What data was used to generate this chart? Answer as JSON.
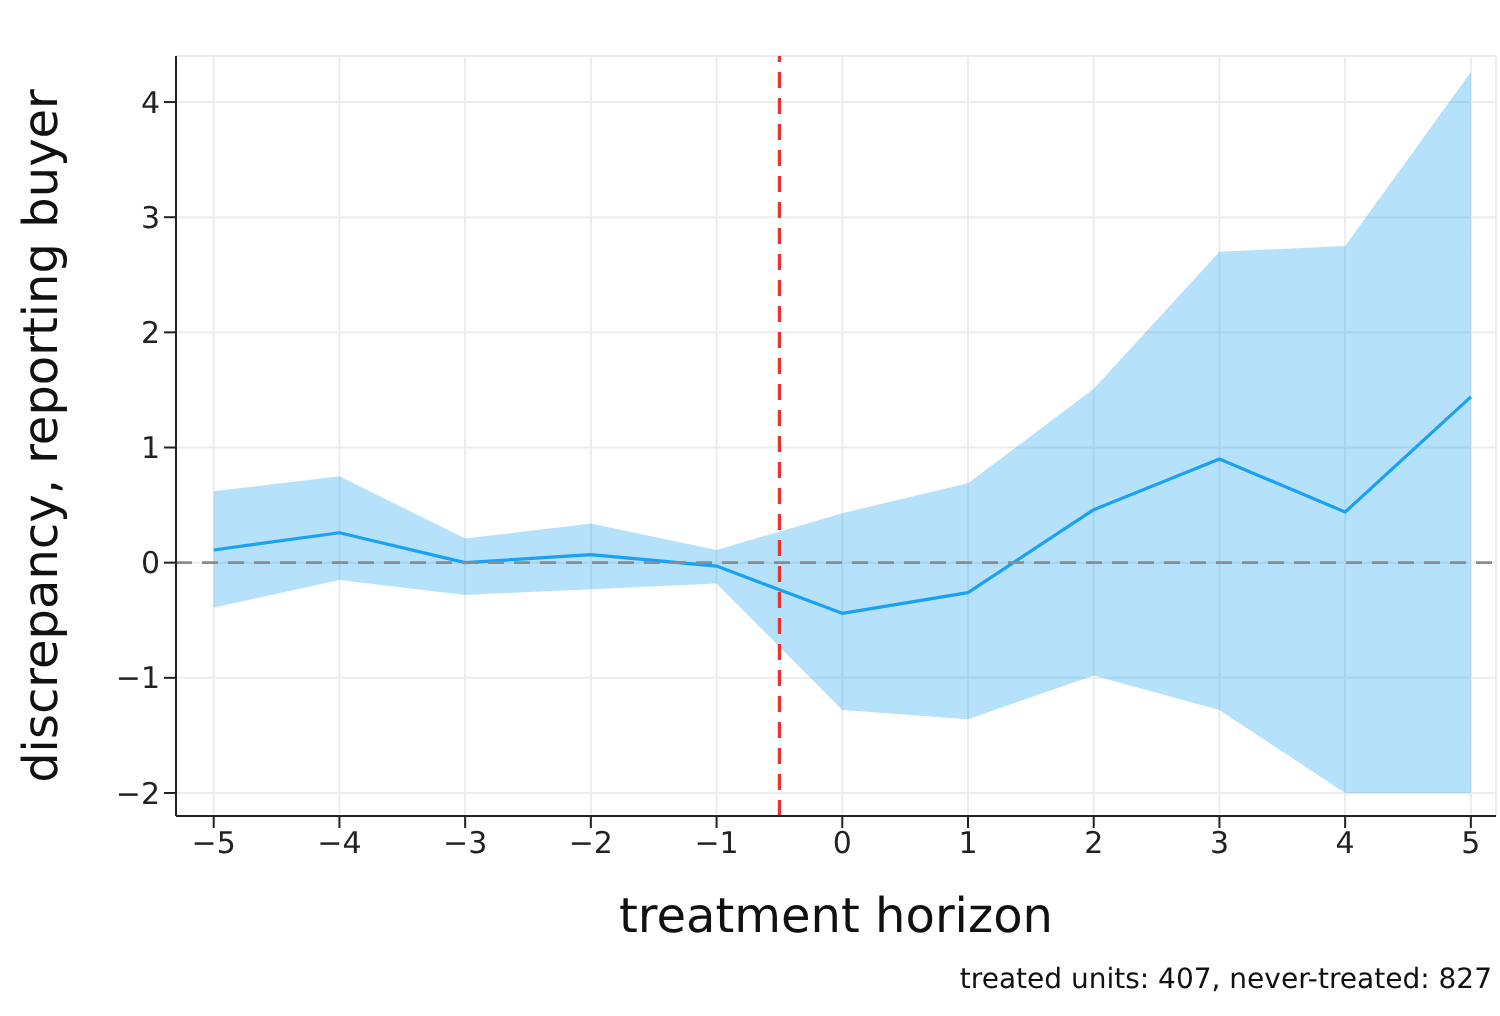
{
  "chart_data": {
    "type": "line",
    "xlabel": "treatment horizon",
    "ylabel": "discrepancy, reporting buyer",
    "x": [
      -5,
      -4,
      -3,
      -2,
      -1,
      0,
      1,
      2,
      3,
      4,
      5
    ],
    "series": [
      {
        "color": "#1ba1f2",
        "values": [
          0.11,
          0.26,
          0.0,
          0.07,
          -0.03,
          -0.44,
          -0.26,
          0.46,
          0.9,
          0.44,
          1.44
        ],
        "lower": [
          -0.39,
          -0.15,
          -0.28,
          -0.23,
          -0.18,
          -1.28,
          -1.36,
          -0.98,
          -1.28,
          -2.0,
          -2.0
        ],
        "upper": [
          0.62,
          0.75,
          0.21,
          0.34,
          0.11,
          0.43,
          0.69,
          1.51,
          2.7,
          2.75,
          4.26
        ]
      }
    ],
    "xlim": [
      -5.3,
      5.2
    ],
    "xticks": [
      {
        "value": -5,
        "label": "−5"
      },
      {
        "value": -4,
        "label": "−4"
      },
      {
        "value": -3,
        "label": "−3"
      },
      {
        "value": -2,
        "label": "−2"
      },
      {
        "value": -1,
        "label": "−1"
      },
      0,
      1,
      2,
      3,
      4,
      5
    ],
    "ylim": [
      -2.2,
      4.4
    ],
    "yticks": [
      {
        "value": -2,
        "label": "−2"
      },
      {
        "value": -1,
        "label": "−1"
      },
      0,
      1,
      2,
      3,
      4
    ],
    "ref_lines": [
      {
        "axis": "y",
        "value": 0,
        "color": "#8c8c8c",
        "line_style": "dashed"
      },
      {
        "axis": "x",
        "value": -0.5,
        "color": "#e8322f",
        "line_style": "dashed"
      }
    ],
    "annotations": [
      "treated units: 407, never-treated: 827"
    ],
    "grid": true,
    "legend": false,
    "marker": "none",
    "line_style": "solid"
  }
}
